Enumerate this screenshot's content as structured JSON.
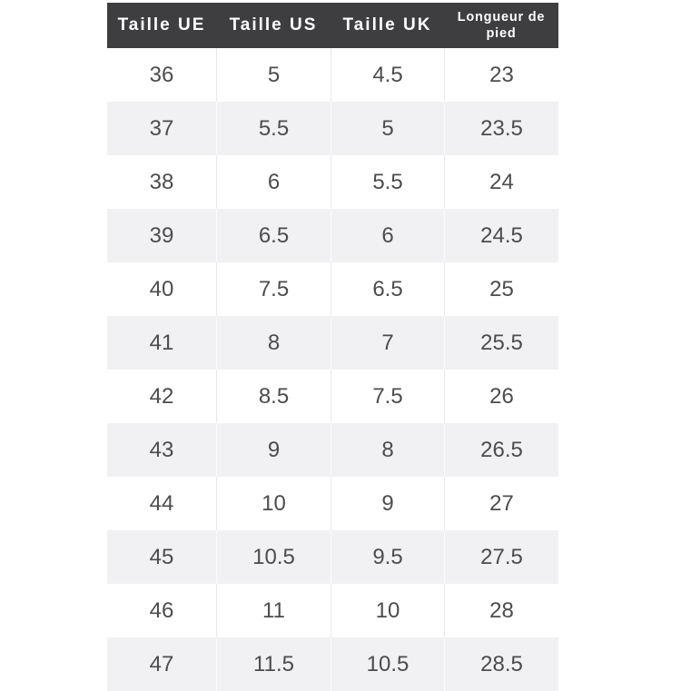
{
  "table": {
    "headers": [
      "Taille UE",
      "Taille US",
      "Taille UK",
      "Longueur de pied"
    ],
    "rows": [
      [
        "36",
        "5",
        "4.5",
        "23"
      ],
      [
        "37",
        "5.5",
        "5",
        "23.5"
      ],
      [
        "38",
        "6",
        "5.5",
        "24"
      ],
      [
        "39",
        "6.5",
        "6",
        "24.5"
      ],
      [
        "40",
        "7.5",
        "6.5",
        "25"
      ],
      [
        "41",
        "8",
        "7",
        "25.5"
      ],
      [
        "42",
        "8.5",
        "7.5",
        "26"
      ],
      [
        "43",
        "9",
        "8",
        "26.5"
      ],
      [
        "44",
        "10",
        "9",
        "27"
      ],
      [
        "45",
        "10.5",
        "9.5",
        "27.5"
      ],
      [
        "46",
        "11",
        "10",
        "28"
      ],
      [
        "47",
        "11.5",
        "10.5",
        "28.5"
      ]
    ]
  },
  "colors": {
    "header_bg": "#3e3d3f",
    "header_text": "#ffffff",
    "row_bg": "#ffffff",
    "row_alt_bg": "#f1f1f3",
    "cell_text": "#4c4c4c",
    "divider": "#e9e9ec"
  },
  "chart_data": {
    "type": "table",
    "title": "",
    "columns": [
      "Taille UE",
      "Taille US",
      "Taille UK",
      "Longueur de pied"
    ],
    "rows": [
      [
        36,
        5,
        4.5,
        23
      ],
      [
        37,
        5.5,
        5,
        23.5
      ],
      [
        38,
        6,
        5.5,
        24
      ],
      [
        39,
        6.5,
        6,
        24.5
      ],
      [
        40,
        7.5,
        6.5,
        25
      ],
      [
        41,
        8,
        7,
        25.5
      ],
      [
        42,
        8.5,
        7.5,
        26
      ],
      [
        43,
        9,
        8,
        26.5
      ],
      [
        44,
        10,
        9,
        27
      ],
      [
        45,
        10.5,
        9.5,
        27.5
      ],
      [
        46,
        11,
        10,
        28
      ],
      [
        47,
        11.5,
        10.5,
        28.5
      ]
    ],
    "layout_hints": {
      "header_style": "dark-bar-white-text",
      "zebra_striping": true,
      "last_row_clipped_at_bottom": true
    }
  }
}
